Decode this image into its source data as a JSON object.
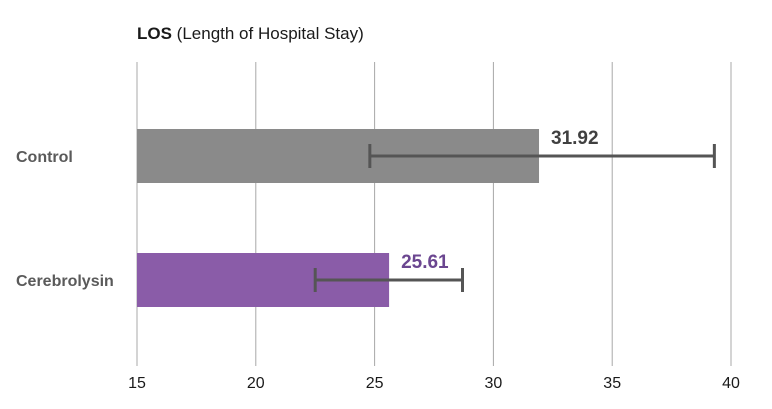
{
  "chart_data": {
    "type": "bar",
    "orientation": "horizontal",
    "title_bold": "LOS",
    "title_rest": " (Length of Hospital Stay)",
    "categories": [
      "Control",
      "Cerebrolysin"
    ],
    "values": [
      31.92,
      25.61
    ],
    "value_labels": [
      "31.92",
      "25.61"
    ],
    "error_low": [
      24.8,
      22.5
    ],
    "error_high": [
      39.3,
      28.7
    ],
    "xlim": [
      15,
      40
    ],
    "xticks": [
      15,
      20,
      25,
      30,
      35,
      40
    ],
    "xtick_labels": [
      "15",
      "20",
      "25",
      "30",
      "35",
      "40"
    ],
    "grid": true,
    "legend": "none",
    "colors": {
      "bars": [
        "#8a8a8a",
        "#8a5ca8"
      ],
      "value_labels": [
        "#404040",
        "#6b4690"
      ],
      "error_bar": "#555555",
      "grid": "#a8a8a8",
      "category_label": "#5a5a5a"
    }
  }
}
